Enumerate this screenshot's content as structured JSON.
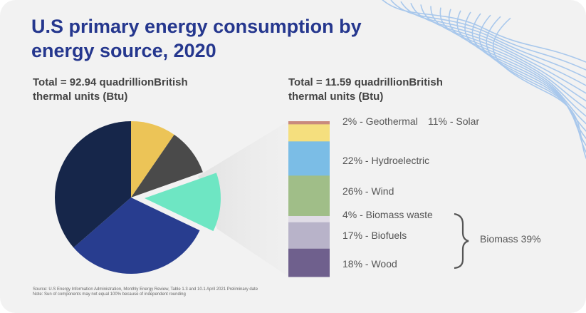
{
  "title": "U.S primary energy consumption by energy source, 2020",
  "left_total": "Total = 92.94 quadrillionBritish thermal units (Btu)",
  "right_total": "Total = 11.59 quadrillionBritish thermal units (Btu)",
  "source": "Source: U.S Energy Information Administration, Monthly Energy Review, Table 1.3 and 10.1 April 2021 Preliminary date",
  "note": "Note: Sun of components may not equal 100% because of independent rounding",
  "chart_data": [
    {
      "type": "pie",
      "unit": "percent (estimated)",
      "slices": [
        {
          "value": 9.6,
          "color": "#ecc457"
        },
        {
          "value": 10.0,
          "color": "#4a4a4a"
        },
        {
          "value": 12.5,
          "color": "#6ee6c3",
          "exploded": true
        },
        {
          "value": 31.5,
          "color": "#283d8f"
        },
        {
          "value": 36.4,
          "color": "#16264a"
        }
      ]
    },
    {
      "type": "bar",
      "stacked": true,
      "unit": "percent",
      "segments": [
        {
          "label": "2% - Geothermal",
          "value": 2,
          "color": "#c98a7d"
        },
        {
          "label": "11% - Solar",
          "value": 11,
          "color": "#f5df7e"
        },
        {
          "label": "22% - Hydroelectric",
          "value": 22,
          "color": "#7bbde6"
        },
        {
          "label": "26% - Wind",
          "value": 26,
          "color": "#a0be88"
        },
        {
          "label": "4% - Biomass waste",
          "value": 4,
          "color": "#e0dce6"
        },
        {
          "label": "17% - Biofuels",
          "value": 17,
          "color": "#b8b3c9"
        },
        {
          "label": "18% - Wood",
          "value": 18,
          "color": "#6f608d"
        }
      ],
      "group_annotation": "Biomass 39%"
    }
  ],
  "decoration_color": "#a9c8ec"
}
